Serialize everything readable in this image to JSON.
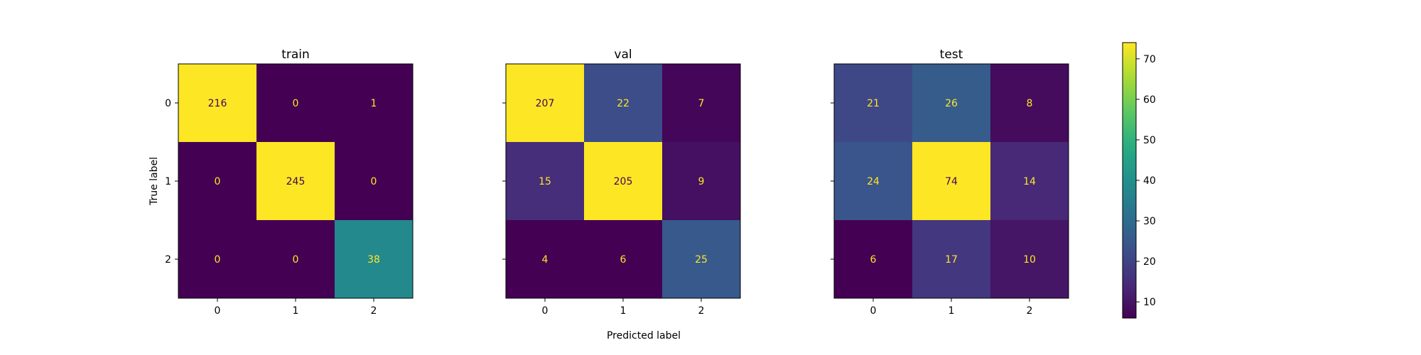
{
  "chart_data": [
    {
      "type": "heatmap",
      "title": "train",
      "xlabel": "",
      "ylabel": "True label",
      "x_categories": [
        "0",
        "1",
        "2"
      ],
      "y_categories": [
        "0",
        "1",
        "2"
      ],
      "values": [
        [
          216,
          0,
          1
        ],
        [
          0,
          245,
          0
        ],
        [
          0,
          0,
          38
        ]
      ]
    },
    {
      "type": "heatmap",
      "title": "val",
      "xlabel": "Predicted label",
      "ylabel": "",
      "x_categories": [
        "0",
        "1",
        "2"
      ],
      "y_categories": [
        "0",
        "1",
        "2"
      ],
      "values": [
        [
          207,
          22,
          7
        ],
        [
          15,
          205,
          9
        ],
        [
          4,
          6,
          25
        ]
      ]
    },
    {
      "type": "heatmap",
      "title": "test",
      "xlabel": "",
      "ylabel": "",
      "x_categories": [
        "0",
        "1",
        "2"
      ],
      "y_categories": [
        "0",
        "1",
        "2"
      ],
      "values": [
        [
          21,
          26,
          8
        ],
        [
          24,
          74,
          14
        ],
        [
          6,
          17,
          10
        ]
      ]
    }
  ],
  "colorbar": {
    "colormap": "viridis",
    "range": [
      6,
      74
    ],
    "ticks": [
      "10",
      "20",
      "30",
      "40",
      "50",
      "60",
      "70"
    ]
  },
  "text_colors": {
    "light_cell": "#fde725",
    "dark_cell": "#440154"
  }
}
